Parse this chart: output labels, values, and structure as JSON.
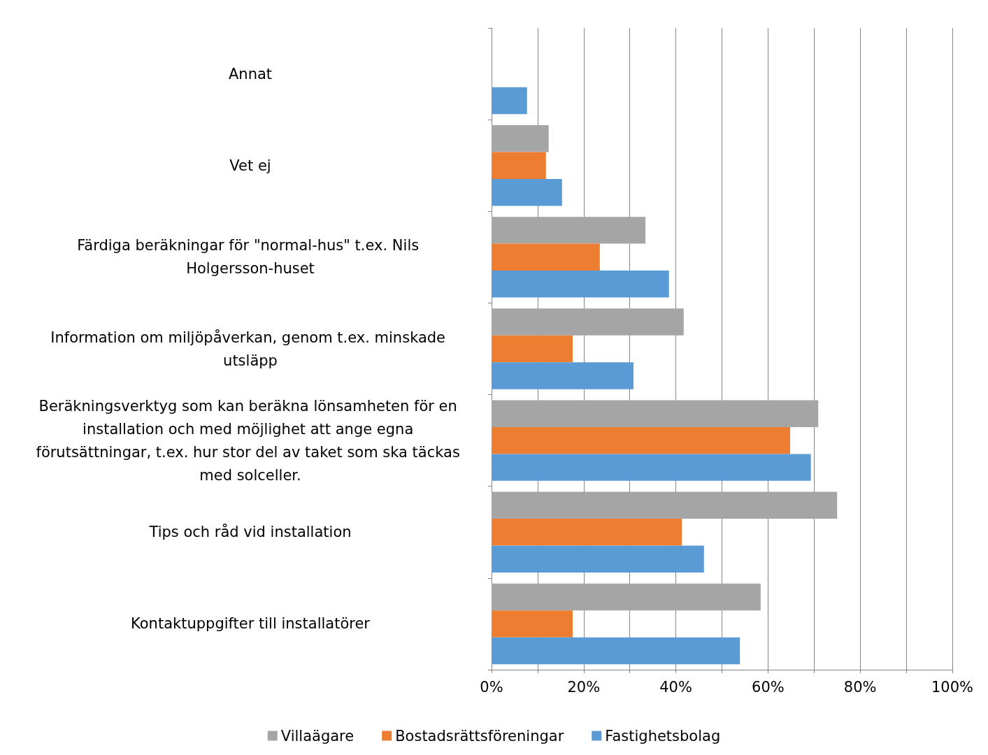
{
  "chart_data": {
    "type": "bar",
    "orientation": "horizontal",
    "categories": [
      "Annat",
      "Vet ej",
      "Färdiga beräkningar för \"normal-hus\" t.ex. Nils Holgersson-huset",
      "Information om miljöpåverkan, genom t.ex. minskade utsläpp",
      "Beräkningsverktyg som kan beräkna lönsamheten för en installation och med möjlighet att ange egna förutsättningar, t.ex. hur stor del av taket som ska täckas med solceller.",
      "Tips och råd vid installation",
      "Kontaktuppgifter till installatörer"
    ],
    "series": [
      {
        "name": "Villaägare",
        "color": "#a5a5a5",
        "values": [
          0,
          12.4,
          33.4,
          41.7,
          70.9,
          75.0,
          58.4
        ]
      },
      {
        "name": "Bostadsrättsföreningar",
        "color": "#ed7d31",
        "values": [
          0,
          11.8,
          23.5,
          17.6,
          64.8,
          41.3,
          17.6
        ]
      },
      {
        "name": "Fastighetsbolag",
        "color": "#5b9bd5",
        "values": [
          7.7,
          15.3,
          38.5,
          30.8,
          69.3,
          46.1,
          53.9
        ]
      }
    ],
    "xlim": [
      0,
      100
    ],
    "xticks": [
      {
        "value": 0,
        "label": "0%"
      },
      {
        "value": 10,
        "label": null
      },
      {
        "value": 20,
        "label": "20%"
      },
      {
        "value": 30,
        "label": null
      },
      {
        "value": 40,
        "label": "40%"
      },
      {
        "value": 50,
        "label": null
      },
      {
        "value": 60,
        "label": "60%"
      },
      {
        "value": 70,
        "label": null
      },
      {
        "value": 80,
        "label": "80%"
      },
      {
        "value": 90,
        "label": null
      },
      {
        "value": 100,
        "label": "100%"
      }
    ],
    "grid": "x",
    "legend": "bottom"
  }
}
